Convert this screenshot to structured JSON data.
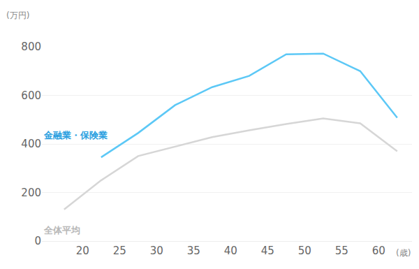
{
  "chart_data": {
    "type": "line",
    "ylabel": "(万円)",
    "xlabel": "(歳)",
    "x": [
      17.5,
      22.5,
      27.5,
      32.5,
      37.5,
      42.5,
      47.5,
      52.5,
      57.5,
      62.5
    ],
    "series": [
      {
        "name": "金融業・保険業",
        "color": "#5cc8f6",
        "values": [
          null,
          345,
          445,
          560,
          634,
          680,
          769,
          772,
          700,
          508
        ]
      },
      {
        "name": "全体平均",
        "color": "#d6d6d6",
        "values": [
          130,
          250,
          350,
          390,
          428,
          456,
          482,
          505,
          485,
          370
        ]
      }
    ],
    "xlim": [
      14.5,
      64.5
    ],
    "xticks": [
      20,
      25,
      30,
      35,
      40,
      45,
      50,
      55,
      60
    ],
    "ylim": [
      0,
      800
    ],
    "yticks": [
      0,
      200,
      400,
      600,
      800
    ],
    "grid": true,
    "legend": "none"
  }
}
